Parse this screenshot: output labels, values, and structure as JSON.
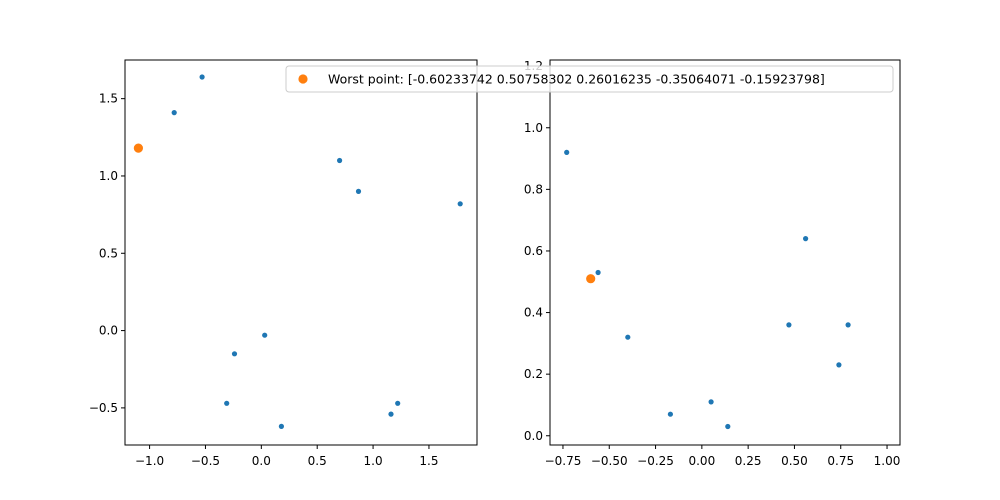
{
  "chart_data": [
    {
      "type": "scatter",
      "xlim": [
        -1.22,
        1.93
      ],
      "ylim": [
        -0.74,
        1.75
      ],
      "xticks": [
        -1.0,
        -0.5,
        0.0,
        0.5,
        1.0,
        1.5
      ],
      "xtick_labels": [
        "−1.0",
        "−0.5",
        "0.0",
        "0.5",
        "1.0",
        "1.5"
      ],
      "yticks": [
        -0.5,
        0.0,
        0.5,
        1.0,
        1.5
      ],
      "ytick_labels": [
        "−0.5",
        "0.0",
        "0.5",
        "1.0",
        "1.5"
      ],
      "grid": false,
      "series": [
        {
          "color": "#1f77b4",
          "points": [
            [
              -0.53,
              1.64
            ],
            [
              -0.78,
              1.41
            ],
            [
              0.7,
              1.1
            ],
            [
              0.87,
              0.9
            ],
            [
              1.78,
              0.82
            ],
            [
              0.03,
              -0.03
            ],
            [
              -0.24,
              -0.15
            ],
            [
              -0.31,
              -0.47
            ],
            [
              1.22,
              -0.47
            ],
            [
              1.16,
              -0.54
            ],
            [
              0.18,
              -0.62
            ]
          ]
        },
        {
          "name": "Worst point: [-0.60233742  0.50758302  0.26016235 -0.35064071 -0.15923798]",
          "color": "#ff7f0e",
          "points": [
            [
              -1.1,
              1.18
            ]
          ]
        }
      ],
      "legend": "top-right"
    },
    {
      "type": "scatter",
      "xlim": [
        -0.82,
        1.07
      ],
      "ylim": [
        -0.03,
        1.22
      ],
      "xticks": [
        -0.75,
        -0.5,
        -0.25,
        0.0,
        0.25,
        0.5,
        0.75,
        1.0
      ],
      "xtick_labels": [
        "−0.75",
        "−0.50",
        "−0.25",
        "0.00",
        "0.25",
        "0.50",
        "0.75",
        "1.00"
      ],
      "yticks": [
        0.0,
        0.2,
        0.4,
        0.6,
        0.8,
        1.0,
        1.2
      ],
      "ytick_labels": [
        "0.0",
        "0.2",
        "0.4",
        "0.6",
        "0.8",
        "1.0",
        "1.2"
      ],
      "grid": false,
      "series": [
        {
          "color": "#1f77b4",
          "points": [
            [
              -0.73,
              0.92
            ],
            [
              -0.56,
              0.53
            ],
            [
              -0.4,
              0.32
            ],
            [
              -0.17,
              0.07
            ],
            [
              0.05,
              0.11
            ],
            [
              0.14,
              0.03
            ],
            [
              0.47,
              0.36
            ],
            [
              0.56,
              0.64
            ],
            [
              0.74,
              0.23
            ],
            [
              0.79,
              0.36
            ]
          ]
        },
        {
          "color": "#ff7f0e",
          "points": [
            [
              -0.6,
              0.51
            ]
          ]
        }
      ]
    }
  ]
}
